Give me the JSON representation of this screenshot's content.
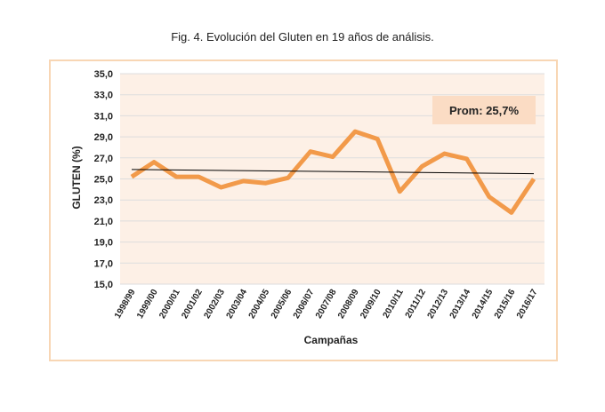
{
  "chart_data": {
    "type": "line",
    "title": "Fig. 4. Evolución del Gluten en 19 años de análisis.",
    "xlabel": "Campañas",
    "ylabel": "GLUTEN  (%)",
    "ylim": [
      15,
      35
    ],
    "yticks": [
      "15,0",
      "17,0",
      "19,0",
      "21,0",
      "23,0",
      "25,0",
      "27,0",
      "29,0",
      "31,0",
      "33,0",
      "35,0"
    ],
    "categories": [
      "1998/99",
      "1999/00",
      "2000/01",
      "2001/02",
      "2002/03",
      "2003/04",
      "2004/05",
      "2005/06",
      "2006/07",
      "2007/08",
      "2008/09",
      "2009/10",
      "2010/11",
      "2011/12",
      "2012/13",
      "2013/14",
      "2014/15",
      "2015/16",
      "2016/17"
    ],
    "series": [
      {
        "name": "Gluten",
        "values": [
          25.2,
          26.6,
          25.2,
          25.2,
          24.2,
          24.8,
          24.6,
          25.1,
          27.6,
          27.1,
          29.5,
          28.8,
          23.8,
          26.2,
          27.4,
          26.9,
          23.3,
          21.8,
          25.0
        ]
      }
    ],
    "trendline": {
      "start": 25.9,
      "end": 25.5
    },
    "annotation": "Prom: 25,7%",
    "grid": true,
    "colors": {
      "line": "#f29a4a",
      "plot_bg": "#fdf0e6",
      "annotation_bg": "#fbdcc4",
      "frame": "#f8d6b4"
    }
  }
}
